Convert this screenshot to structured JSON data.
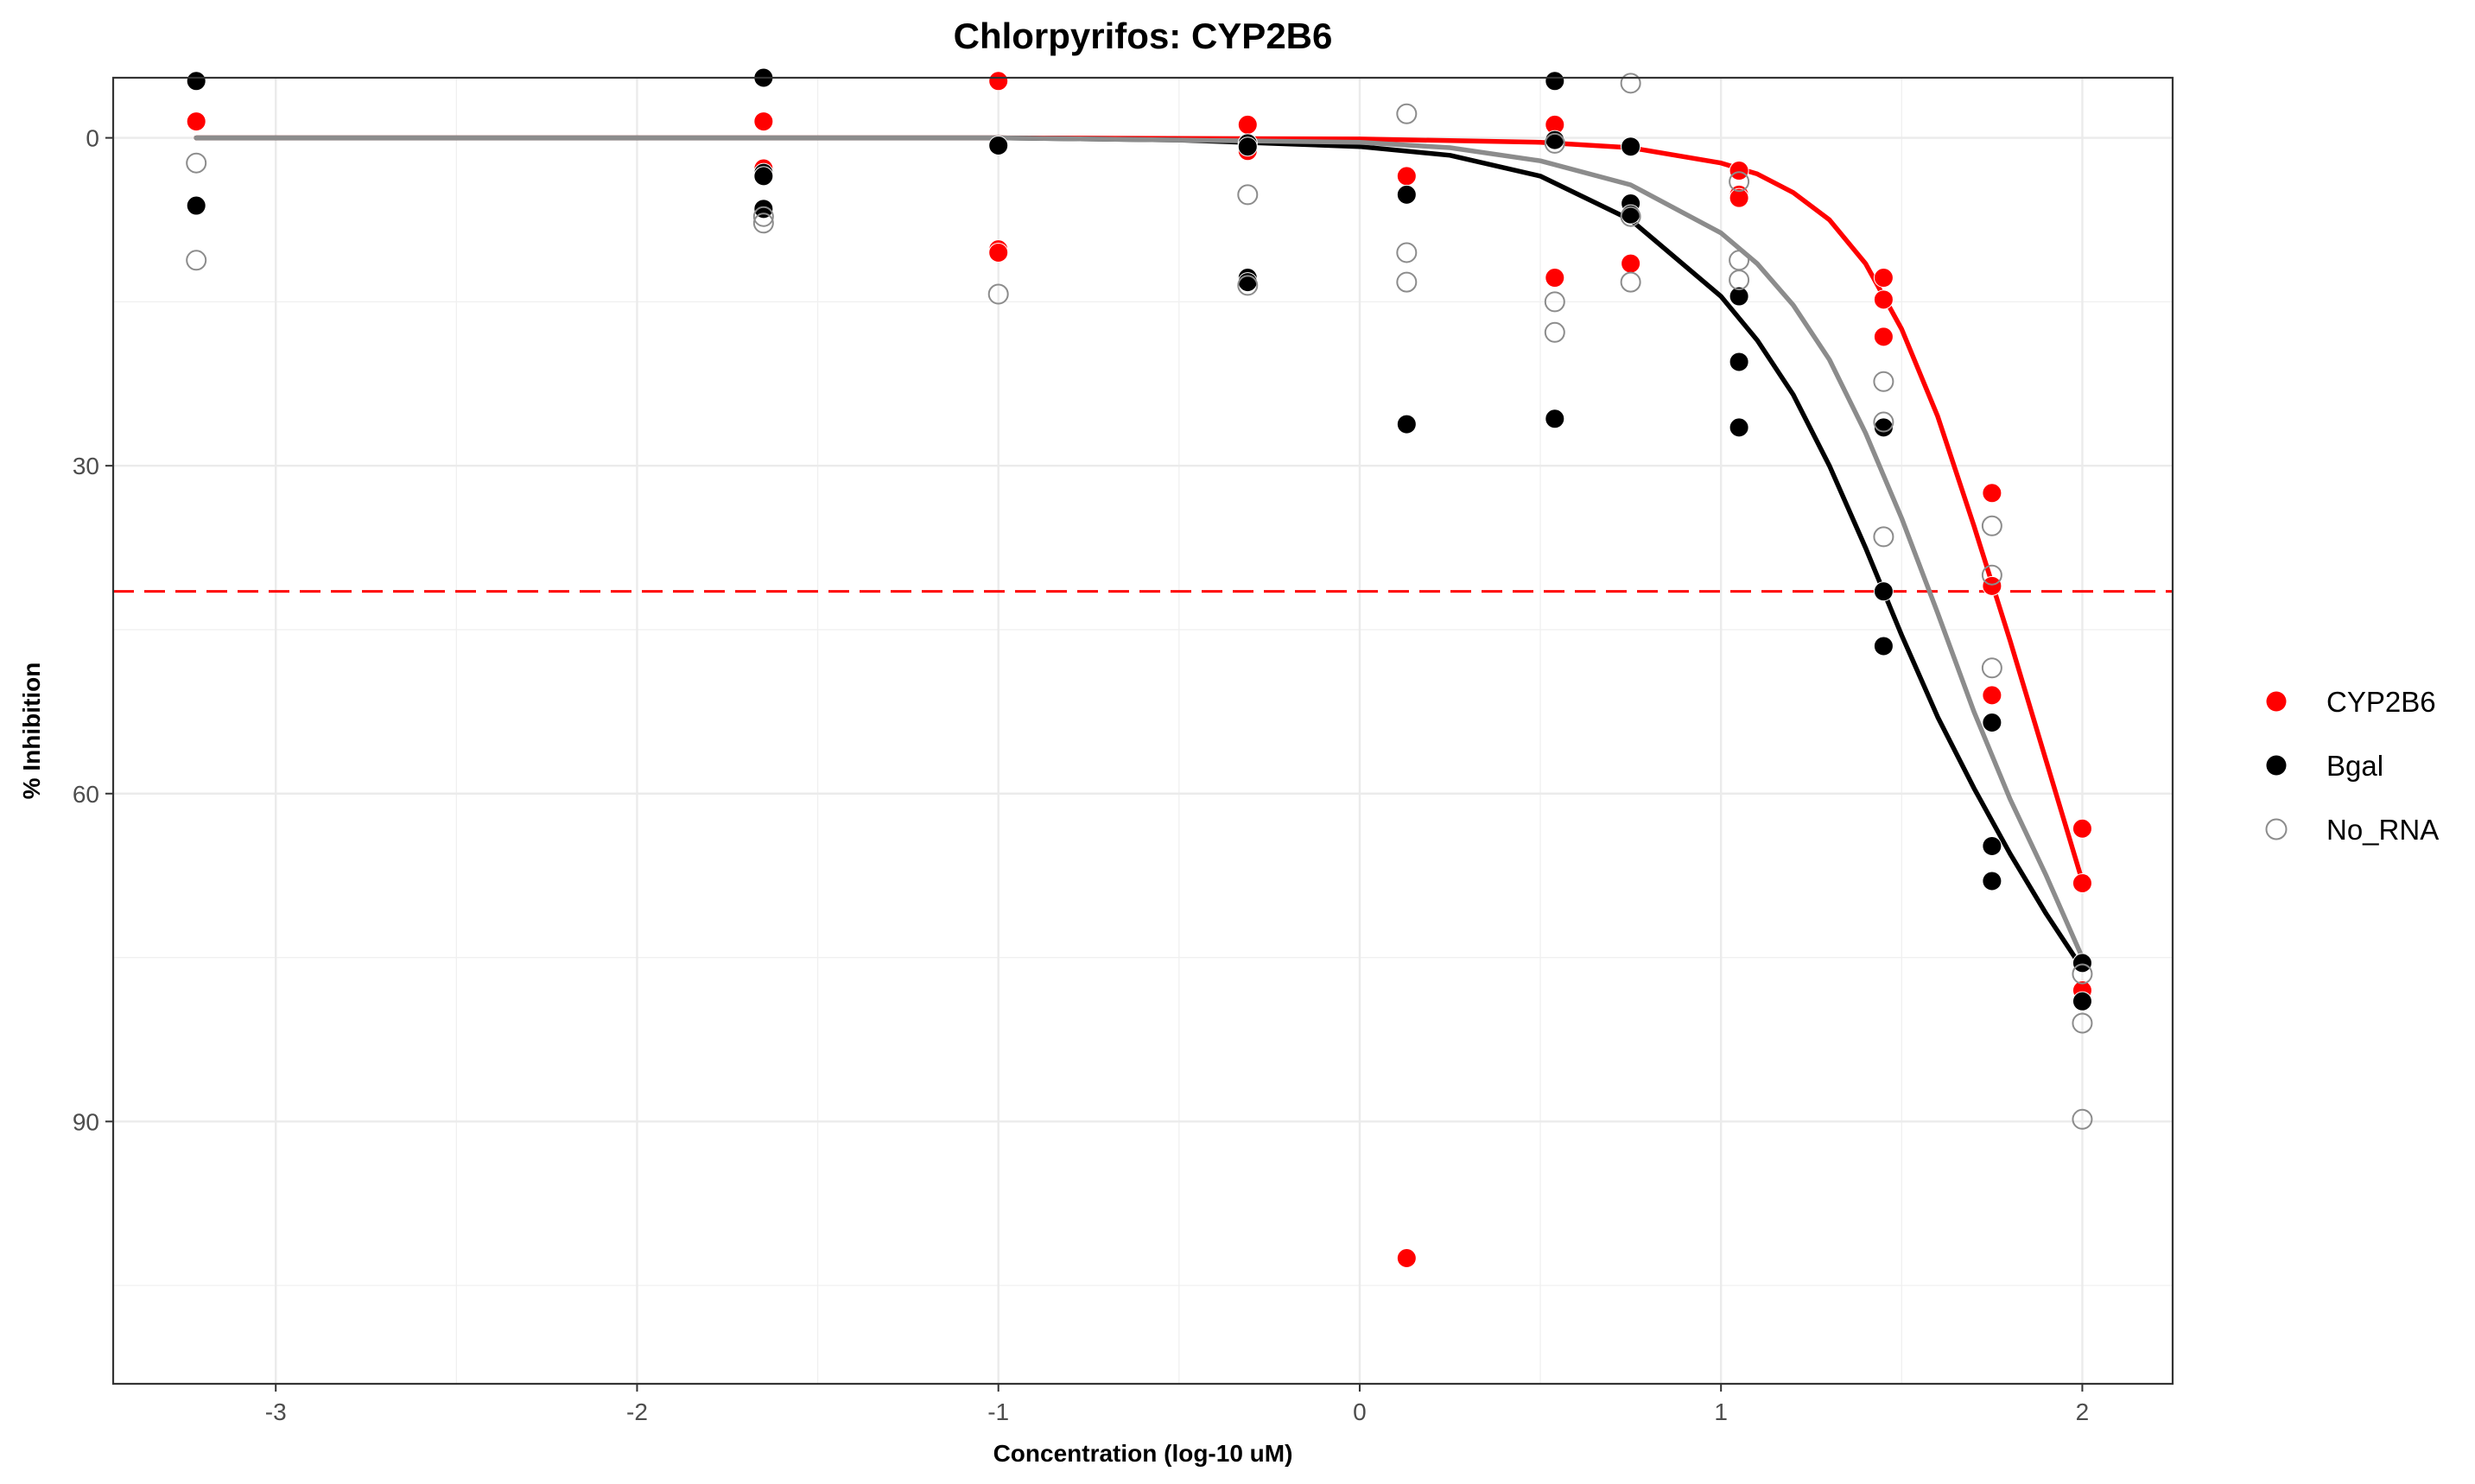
{
  "chart_data": {
    "type": "scatter",
    "title": "Chlorpyrifos: CYP2B6",
    "xlabel": "Concentration (log-10 uM)",
    "ylabel": "% Inhibition",
    "xlim": [
      -3.45,
      2.25
    ],
    "ylim": [
      -5.5,
      114
    ],
    "y_reversed": true,
    "x_ticks": [
      -3,
      -2,
      -1,
      0,
      1,
      2
    ],
    "x_tick_labels": [
      "-3",
      "-2",
      "-1",
      "0",
      "1",
      "2"
    ],
    "y_ticks": [
      0,
      30,
      60,
      90
    ],
    "y_tick_labels": [
      "0",
      "30",
      "60",
      "90"
    ],
    "grid": true,
    "legend_position": "right",
    "reference_line": {
      "orientation": "horizontal",
      "y": 41.5,
      "color": "#ff0000",
      "style": "dashed"
    },
    "series": [
      {
        "name": "CYP2B6",
        "color": "#ff0000",
        "marker": "filled-circle",
        "points": [
          [
            -3.22,
            -1.5
          ],
          [
            -1.65,
            -1.5
          ],
          [
            -1.65,
            2.8
          ],
          [
            -1.0,
            -5.2
          ],
          [
            -1.0,
            10.2
          ],
          [
            -1.0,
            10.5
          ],
          [
            -0.31,
            -1.2
          ],
          [
            -0.31,
            0.5
          ],
          [
            -0.31,
            1.2
          ],
          [
            0.13,
            3.5
          ],
          [
            0.13,
            102.5
          ],
          [
            0.54,
            -1.2
          ],
          [
            0.54,
            12.8
          ],
          [
            0.75,
            0.8
          ],
          [
            0.75,
            11.5
          ],
          [
            1.05,
            3.0
          ],
          [
            1.05,
            5.2
          ],
          [
            1.05,
            5.5
          ],
          [
            1.45,
            12.8
          ],
          [
            1.45,
            14.8
          ],
          [
            1.45,
            18.2
          ],
          [
            1.75,
            32.5
          ],
          [
            1.75,
            41.0
          ],
          [
            1.75,
            51.0
          ],
          [
            2.0,
            63.2
          ],
          [
            2.0,
            68.2
          ],
          [
            2.0,
            78.0
          ]
        ],
        "curve": [
          [
            -3.22,
            0.0
          ],
          [
            -1.0,
            0.0
          ],
          [
            0.0,
            0.1
          ],
          [
            0.5,
            0.4
          ],
          [
            0.75,
            0.9
          ],
          [
            1.0,
            2.3
          ],
          [
            1.1,
            3.3
          ],
          [
            1.2,
            5.0
          ],
          [
            1.3,
            7.5
          ],
          [
            1.4,
            11.5
          ],
          [
            1.5,
            17.5
          ],
          [
            1.6,
            25.5
          ],
          [
            1.7,
            35.5
          ],
          [
            1.8,
            46.0
          ],
          [
            1.9,
            57.0
          ],
          [
            2.0,
            68.0
          ]
        ]
      },
      {
        "name": "Bgal",
        "color": "#000000",
        "marker": "filled-circle",
        "points": [
          [
            -3.22,
            -5.2
          ],
          [
            -3.22,
            6.2
          ],
          [
            -1.65,
            -5.5
          ],
          [
            -1.65,
            3.2
          ],
          [
            -1.65,
            3.5
          ],
          [
            -1.65,
            6.5
          ],
          [
            -1.0,
            0.7
          ],
          [
            -0.31,
            0.5
          ],
          [
            -0.31,
            0.8
          ],
          [
            -0.31,
            12.8
          ],
          [
            -0.31,
            13.2
          ],
          [
            0.13,
            5.2
          ],
          [
            0.13,
            26.2
          ],
          [
            0.54,
            -5.2
          ],
          [
            0.54,
            0.2
          ],
          [
            0.54,
            25.7
          ],
          [
            0.75,
            0.8
          ],
          [
            0.75,
            6.0
          ],
          [
            0.75,
            7.0
          ],
          [
            1.05,
            14.5
          ],
          [
            1.05,
            20.5
          ],
          [
            1.05,
            26.5
          ],
          [
            1.45,
            26.5
          ],
          [
            1.45,
            41.5
          ],
          [
            1.45,
            46.5
          ],
          [
            1.75,
            53.5
          ],
          [
            1.75,
            64.8
          ],
          [
            1.75,
            68.0
          ],
          [
            2.0,
            75.5
          ],
          [
            2.0,
            79.0
          ]
        ],
        "curve": [
          [
            -3.22,
            0.0
          ],
          [
            -1.0,
            0.0
          ],
          [
            -0.5,
            0.2
          ],
          [
            0.0,
            0.8
          ],
          [
            0.25,
            1.6
          ],
          [
            0.5,
            3.5
          ],
          [
            0.75,
            7.5
          ],
          [
            1.0,
            14.5
          ],
          [
            1.1,
            18.5
          ],
          [
            1.2,
            23.5
          ],
          [
            1.3,
            30.0
          ],
          [
            1.4,
            37.5
          ],
          [
            1.5,
            45.5
          ],
          [
            1.6,
            53.0
          ],
          [
            1.7,
            59.5
          ],
          [
            1.8,
            65.5
          ],
          [
            1.9,
            71.0
          ],
          [
            2.0,
            76.0
          ]
        ]
      },
      {
        "name": "No_RNA",
        "color": "#8c8c8c",
        "marker": "open-circle",
        "points": [
          [
            -3.22,
            2.3
          ],
          [
            -3.22,
            11.2
          ],
          [
            -1.65,
            7.2
          ],
          [
            -1.65,
            7.8
          ],
          [
            -1.0,
            14.3
          ],
          [
            -0.31,
            5.2
          ],
          [
            -0.31,
            13.5
          ],
          [
            0.13,
            -2.2
          ],
          [
            0.13,
            10.5
          ],
          [
            0.13,
            13.2
          ],
          [
            0.54,
            0.5
          ],
          [
            0.54,
            15.0
          ],
          [
            0.54,
            17.8
          ],
          [
            0.75,
            -5.0
          ],
          [
            0.75,
            7.2
          ],
          [
            0.75,
            13.2
          ],
          [
            1.05,
            4.0
          ],
          [
            1.05,
            11.2
          ],
          [
            1.05,
            13.0
          ],
          [
            1.45,
            22.3
          ],
          [
            1.45,
            26.0
          ],
          [
            1.45,
            36.5
          ],
          [
            1.75,
            35.5
          ],
          [
            1.75,
            40.0
          ],
          [
            1.75,
            48.5
          ],
          [
            2.0,
            76.5
          ],
          [
            2.0,
            81.0
          ],
          [
            2.0,
            89.8
          ]
        ],
        "curve": [
          [
            -3.22,
            0.0
          ],
          [
            -1.0,
            0.0
          ],
          [
            0.0,
            0.4
          ],
          [
            0.25,
            0.9
          ],
          [
            0.5,
            2.1
          ],
          [
            0.75,
            4.3
          ],
          [
            1.0,
            8.7
          ],
          [
            1.1,
            11.5
          ],
          [
            1.2,
            15.3
          ],
          [
            1.3,
            20.3
          ],
          [
            1.4,
            27.0
          ],
          [
            1.5,
            34.8
          ],
          [
            1.6,
            43.5
          ],
          [
            1.7,
            52.5
          ],
          [
            1.8,
            60.5
          ],
          [
            1.9,
            67.5
          ],
          [
            2.0,
            75.0
          ]
        ]
      }
    ]
  }
}
